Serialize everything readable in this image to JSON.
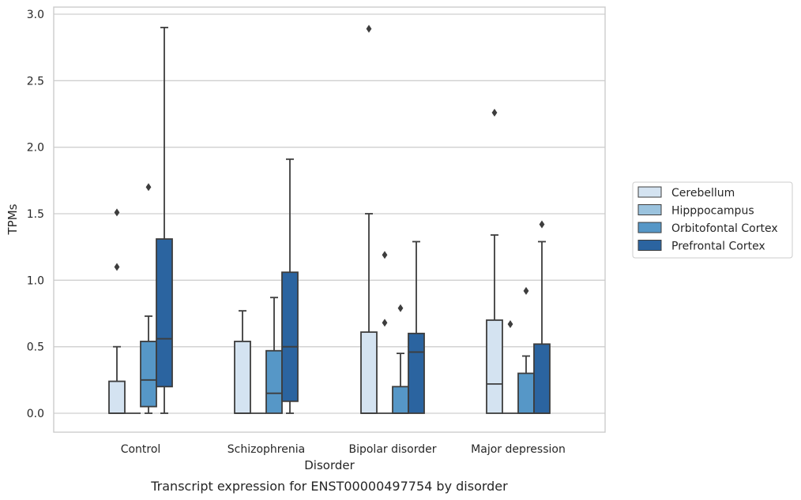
{
  "chart_data": {
    "type": "box",
    "caption": "Transcript expression for ENST00000497754 by disorder",
    "xlabel": "Disorder",
    "ylabel": "TPMs",
    "ylim": [
      -0.14,
      3.05
    ],
    "yticks": [
      "0.0",
      "0.5",
      "1.0",
      "1.5",
      "2.0",
      "2.5",
      "3.0"
    ],
    "grid": "horizontal",
    "legend_position": "right",
    "categories": [
      "Control",
      "Schizophrenia",
      "Bipolar disorder",
      "Major depression"
    ],
    "series": [
      {
        "name": "Cerebellum",
        "color": "#d4e3f1",
        "boxes": [
          {
            "whisker_low": 0,
            "q1": 0,
            "median": 0,
            "q3": 0.24,
            "whisker_high": 0.5,
            "outliers": [
              1.1,
              1.51
            ]
          },
          {
            "whisker_low": 0,
            "q1": 0,
            "median": 0,
            "q3": 0.54,
            "whisker_high": 0.77,
            "outliers": []
          },
          {
            "whisker_low": 0,
            "q1": 0,
            "median": 0,
            "q3": 0.61,
            "whisker_high": 1.5,
            "outliers": [
              2.89
            ]
          },
          {
            "whisker_low": 0,
            "q1": 0,
            "median": 0.22,
            "q3": 0.7,
            "whisker_high": 1.34,
            "outliers": [
              2.26
            ]
          }
        ]
      },
      {
        "name": "Hipppocampus",
        "color": "#9bc3de",
        "boxes": [
          {
            "whisker_low": 0,
            "q1": 0,
            "median": 0,
            "q3": 0,
            "whisker_high": 0,
            "outliers": []
          },
          {
            "whisker_low": 0,
            "q1": 0,
            "median": 0,
            "q3": 0,
            "whisker_high": 0,
            "outliers": []
          },
          {
            "whisker_low": 0,
            "q1": 0,
            "median": 0,
            "q3": 0,
            "whisker_high": 0,
            "outliers": [
              0.68,
              1.19
            ]
          },
          {
            "whisker_low": 0,
            "q1": 0,
            "median": 0,
            "q3": 0,
            "whisker_high": 0,
            "outliers": [
              0.67
            ]
          }
        ]
      },
      {
        "name": "Orbitofontal Cortex",
        "color": "#5697c7",
        "boxes": [
          {
            "whisker_low": 0,
            "q1": 0.05,
            "median": 0.25,
            "q3": 0.54,
            "whisker_high": 0.73,
            "outliers": [
              1.7
            ]
          },
          {
            "whisker_low": 0,
            "q1": 0,
            "median": 0.15,
            "q3": 0.47,
            "whisker_high": 0.87,
            "outliers": []
          },
          {
            "whisker_low": 0,
            "q1": 0,
            "median": 0,
            "q3": 0.2,
            "whisker_high": 0.45,
            "outliers": [
              0.79
            ]
          },
          {
            "whisker_low": 0,
            "q1": 0,
            "median": 0,
            "q3": 0.3,
            "whisker_high": 0.43,
            "outliers": [
              0.92
            ]
          }
        ]
      },
      {
        "name": "Prefrontal Cortex",
        "color": "#2b64a0",
        "boxes": [
          {
            "whisker_low": 0,
            "q1": 0.2,
            "median": 0.56,
            "q3": 1.31,
            "whisker_high": 2.9,
            "outliers": []
          },
          {
            "whisker_low": 0,
            "q1": 0.09,
            "median": 0.5,
            "q3": 1.06,
            "whisker_high": 1.91,
            "outliers": []
          },
          {
            "whisker_low": 0,
            "q1": 0,
            "median": 0.46,
            "q3": 0.6,
            "whisker_high": 1.29,
            "outliers": []
          },
          {
            "whisker_low": 0,
            "q1": 0,
            "median": 0,
            "q3": 0.52,
            "whisker_high": 1.29,
            "outliers": [
              1.42
            ]
          }
        ]
      }
    ]
  }
}
